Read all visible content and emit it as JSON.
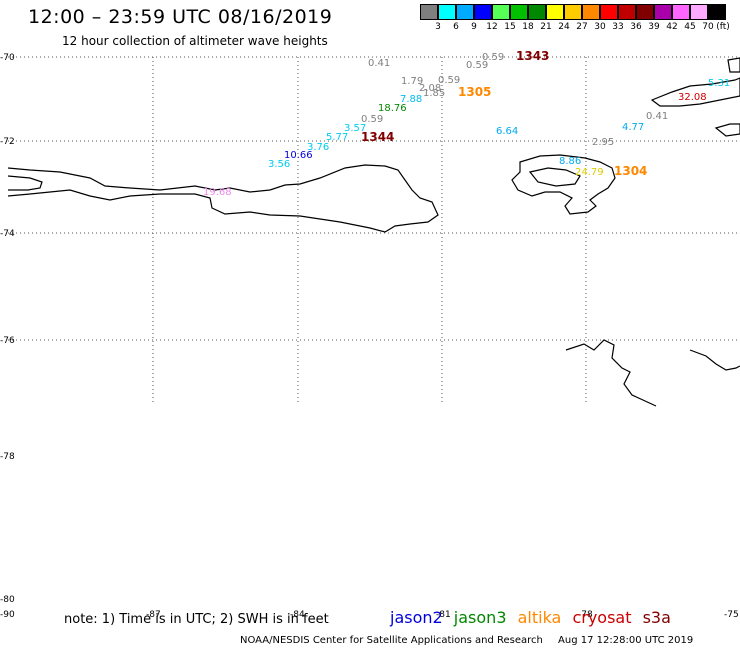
{
  "header": {
    "title": "12:00 – 23:59 UTC 08/16/2019",
    "subtitle": "12 hour collection of altimeter wave heights"
  },
  "legend": {
    "unit": "(ft)",
    "items": [
      {
        "label": "3",
        "color": "#7f7f7f"
      },
      {
        "label": "6",
        "color": "#00ffff"
      },
      {
        "label": "9",
        "color": "#00aaff"
      },
      {
        "label": "12",
        "color": "#0000ff"
      },
      {
        "label": "15",
        "color": "#55ff55"
      },
      {
        "label": "18",
        "color": "#00c000"
      },
      {
        "label": "21",
        "color": "#008800"
      },
      {
        "label": "24",
        "color": "#ffff00"
      },
      {
        "label": "27",
        "color": "#ffcc00"
      },
      {
        "label": "30",
        "color": "#ff8800"
      },
      {
        "label": "33",
        "color": "#ff0000"
      },
      {
        "label": "36",
        "color": "#c00000"
      },
      {
        "label": "39",
        "color": "#800000"
      },
      {
        "label": "42",
        "color": "#aa00aa"
      },
      {
        "label": "45",
        "color": "#ff66ff"
      },
      {
        "label": "70",
        "color": "#ffaaff"
      },
      {
        "label": "",
        "color": "#000000"
      }
    ]
  },
  "map": {
    "lat_labels": [
      "-70",
      "-72",
      "-74",
      "-76",
      "-78",
      "-80"
    ],
    "lon_labels": [
      "-90",
      "-87",
      "-84",
      "-81",
      "-78",
      "-75"
    ],
    "wave_heights": [
      {
        "value": "0.41",
        "color": "#808080"
      },
      {
        "value": "0.59",
        "color": "#808080"
      },
      {
        "value": "0.59",
        "color": "#808080"
      },
      {
        "value": "1.79",
        "color": "#808080"
      },
      {
        "value": "0.59",
        "color": "#808080"
      },
      {
        "value": "2.08",
        "color": "#808080"
      },
      {
        "value": "1.85",
        "color": "#808080"
      },
      {
        "value": "7.88",
        "color": "#00bbee"
      },
      {
        "value": "18.76",
        "color": "#008800"
      },
      {
        "value": "0.59",
        "color": "#808080"
      },
      {
        "value": "3.57",
        "color": "#00ccee"
      },
      {
        "value": "5.77",
        "color": "#00ccee"
      },
      {
        "value": "3.76",
        "color": "#00ccee"
      },
      {
        "value": "10.66",
        "color": "#0000dd"
      },
      {
        "value": "3.56",
        "color": "#00ccee"
      },
      {
        "value": "19.68",
        "color": "#ee88ee"
      },
      {
        "value": "6.64",
        "color": "#00aaee"
      },
      {
        "value": "2.95",
        "color": "#808080"
      },
      {
        "value": "8.86",
        "color": "#00aaee"
      },
      {
        "value": "24.79",
        "color": "#ddcc00"
      },
      {
        "value": "4.77",
        "color": "#00aaee"
      },
      {
        "value": "0.41",
        "color": "#808080"
      },
      {
        "value": "5.31",
        "color": "#00ccee"
      },
      {
        "value": "32.08",
        "color": "#cc0000"
      }
    ],
    "pass_times": [
      {
        "value": "1343",
        "color": "#800000"
      },
      {
        "value": "1305",
        "color": "#ff8800"
      },
      {
        "value": "1344",
        "color": "#800000"
      },
      {
        "value": "1304",
        "color": "#ff8800"
      }
    ]
  },
  "footer": {
    "note": "note:  1) Time is in UTC;  2) SWH is in feet",
    "satellites": [
      {
        "name": "jason2",
        "color": "#0000dd"
      },
      {
        "name": "jason3",
        "color": "#008800"
      },
      {
        "name": "altika",
        "color": "#ff8800"
      },
      {
        "name": "cryosat",
        "color": "#cc0000"
      },
      {
        "name": "s3a",
        "color": "#800000"
      }
    ],
    "credit": "NOAA/NESDIS Center for Satellite Applications and Research",
    "generated": "Aug 17 12:28:00 UTC 2019"
  }
}
